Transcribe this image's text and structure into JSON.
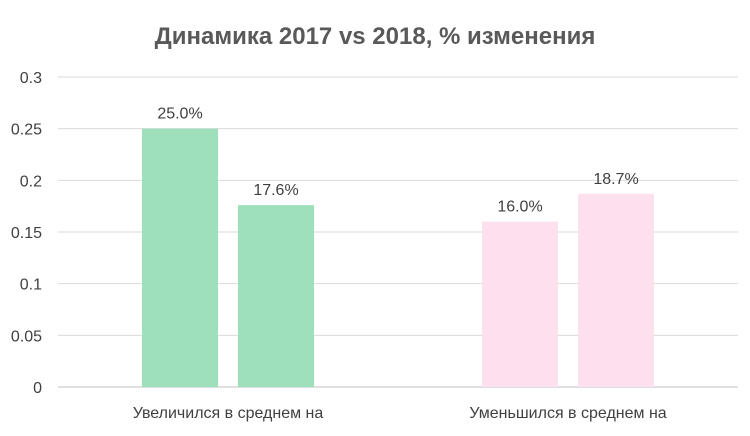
{
  "chart_data": {
    "type": "bar",
    "title": "Динамика 2017 vs 2018, % изменения",
    "categories": [
      "Увеличился в среднем на",
      "Уменьшился в среднем на"
    ],
    "values": [
      [
        0.25,
        0.176
      ],
      [
        0.16,
        0.187
      ]
    ],
    "data_labels": [
      [
        "25.0%",
        "17.6%"
      ],
      [
        "16.0%",
        "18.7%"
      ]
    ],
    "category_colors": [
      "#9de0bb",
      "#fde0ed"
    ],
    "ylim": [
      0,
      0.3
    ],
    "yticks": [
      "0",
      "0.05",
      "0.1",
      "0.15",
      "0.2",
      "0.25",
      "0.3"
    ],
    "grid": true,
    "legend": "none"
  }
}
